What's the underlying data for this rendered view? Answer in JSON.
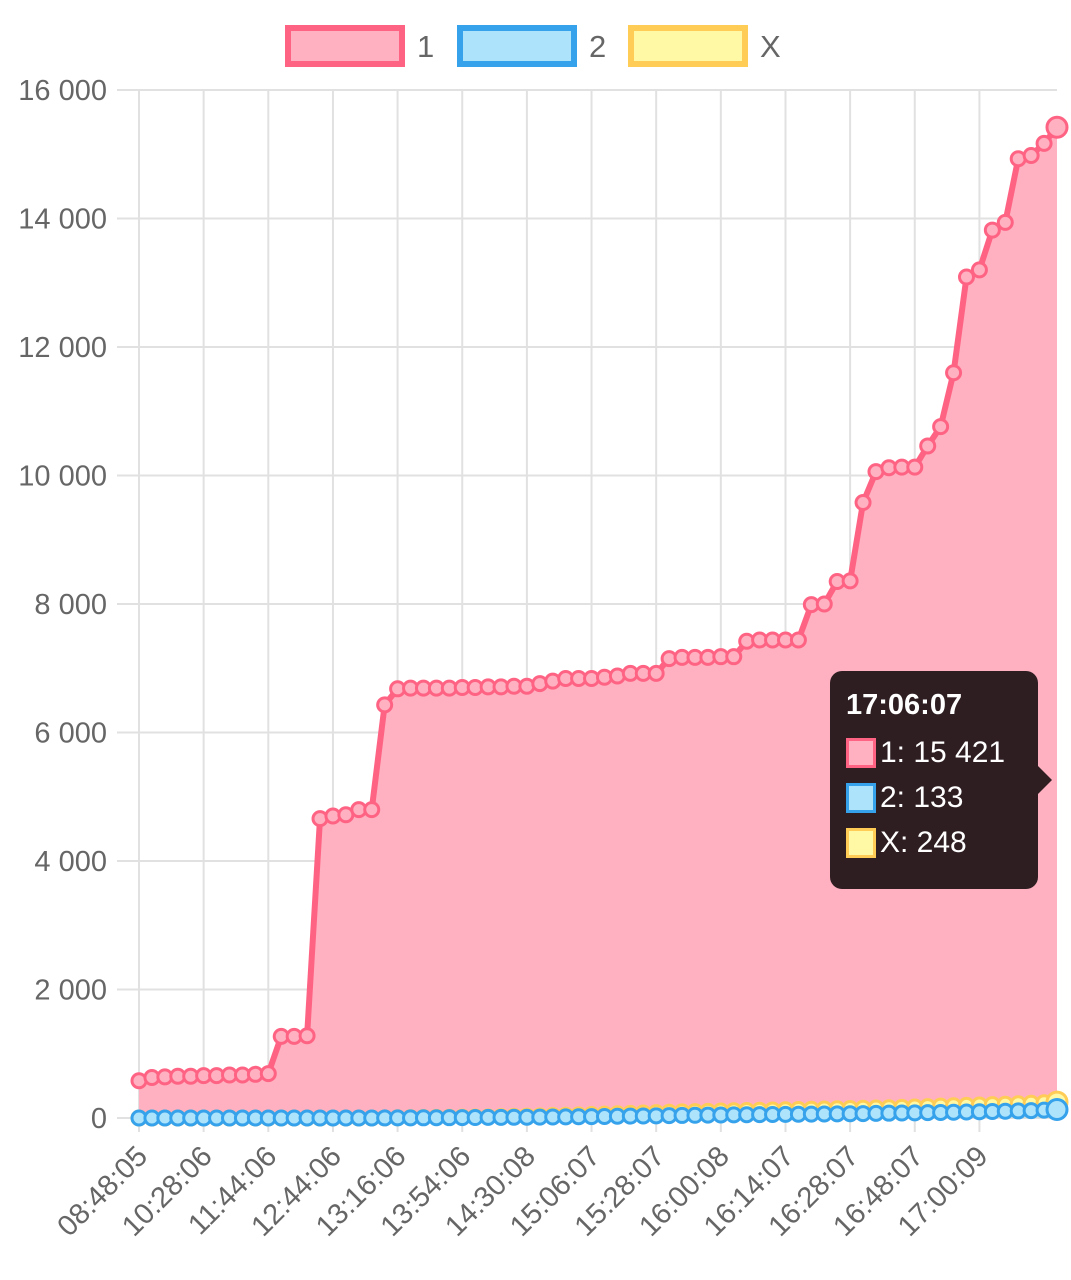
{
  "chart_data": {
    "type": "area",
    "title": "",
    "xlabel": "",
    "ylabel": "",
    "ylim": [
      0,
      16000
    ],
    "y_ticks": [
      0,
      2000,
      4000,
      6000,
      8000,
      10000,
      12000,
      14000,
      16000
    ],
    "y_tick_labels": [
      "0",
      "2 000",
      "4 000",
      "6 000",
      "8 000",
      "10 000",
      "12 000",
      "14 000",
      "16 000"
    ],
    "x_tick_labels": [
      "08:48:05",
      "10:28:06",
      "11:44:06",
      "12:44:06",
      "13:16:06",
      "13:54:06",
      "14:30:08",
      "15:06:07",
      "15:28:07",
      "16:00:08",
      "16:14:07",
      "16:28:07",
      "16:48:07",
      "17:00:09"
    ],
    "grid": true,
    "legend_position": "top",
    "series": [
      {
        "name": "1",
        "color": "#ff6384",
        "fill": "#ffb1c1",
        "values": [
          580,
          630,
          640,
          650,
          650,
          660,
          660,
          670,
          670,
          680,
          690,
          1270,
          1270,
          1280,
          4660,
          4700,
          4720,
          4800,
          4800,
          6430,
          6680,
          6690,
          6690,
          6690,
          6690,
          6700,
          6700,
          6710,
          6710,
          6720,
          6720,
          6760,
          6800,
          6840,
          6840,
          6840,
          6860,
          6880,
          6920,
          6920,
          6920,
          7150,
          7170,
          7170,
          7170,
          7180,
          7180,
          7420,
          7440,
          7440,
          7440,
          7440,
          7990,
          8000,
          8350,
          8360,
          9580,
          10060,
          10120,
          10130,
          10130,
          10460,
          10760,
          11600,
          13090,
          13200,
          13820,
          13940,
          14930,
          14980,
          15170,
          15421
        ]
      },
      {
        "name": "2",
        "color": "#36a2eb",
        "fill": "#ade3fb",
        "values": [
          0,
          0,
          0,
          0,
          0,
          0,
          0,
          0,
          0,
          0,
          0,
          0,
          0,
          0,
          0,
          0,
          0,
          0,
          0,
          1,
          2,
          2,
          3,
          4,
          5,
          6,
          7,
          9,
          10,
          11,
          12,
          14,
          16,
          18,
          20,
          22,
          24,
          27,
          30,
          32,
          34,
          37,
          40,
          42,
          44,
          46,
          48,
          50,
          52,
          54,
          56,
          58,
          60,
          62,
          64,
          66,
          69,
          72,
          75,
          78,
          80,
          83,
          86,
          90,
          94,
          98,
          102,
          106,
          110,
          115,
          122,
          133
        ]
      },
      {
        "name": "X",
        "color": "#ffcd56",
        "fill": "#fff9a6",
        "values": [
          0,
          0,
          0,
          0,
          0,
          0,
          0,
          0,
          0,
          0,
          0,
          0,
          0,
          0,
          0,
          0,
          0,
          0,
          0,
          2,
          4,
          6,
          8,
          10,
          12,
          14,
          16,
          18,
          22,
          26,
          30,
          34,
          38,
          42,
          48,
          54,
          60,
          66,
          72,
          78,
          84,
          90,
          96,
          100,
          104,
          108,
          112,
          116,
          120,
          124,
          128,
          132,
          136,
          140,
          144,
          148,
          152,
          156,
          160,
          166,
          172,
          178,
          184,
          190,
          196,
          202,
          208,
          214,
          222,
          230,
          238,
          248
        ]
      }
    ]
  },
  "tooltip": {
    "title": "17:06:07",
    "rows": [
      "1: 15 421",
      "2: 133",
      "X: 248"
    ]
  }
}
